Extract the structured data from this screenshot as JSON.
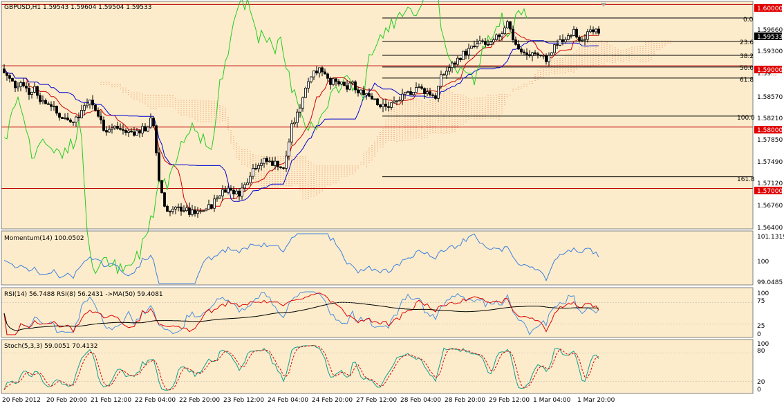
{
  "colors": {
    "background": "#fdeccb",
    "candle": "#000000",
    "tenkan": "#d00000",
    "kijun": "#0000d0",
    "chikou": "#22cc22",
    "cloud": "#f0b890",
    "level_line": "#c00000",
    "fib_line": "#000000",
    "momentum": "#3a7fe0",
    "rsi14": "#e00000",
    "rsi8": "#4a8fe0",
    "rsi_ma": "#000000",
    "stoch_main": "#0f9f8f",
    "stoch_signal": "#e00000",
    "current_price_bg": "#000000",
    "level_tag_bg": "#e00000"
  },
  "main": {
    "header": "GBPUSD,H1  1.59543 1.59604 1.59504 1.59533",
    "price_axis": [
      "1.59660",
      "1.59300",
      "1.58570",
      "1.58210",
      "1.57850",
      "1.57490",
      "1.57120",
      "1.56760",
      "1.56400"
    ],
    "current_price": "1.59533",
    "level_tags": [
      "1.60000",
      "1.59000",
      "1.58000",
      "1.57000"
    ],
    "fib_labels": [
      "0.0",
      "23.6",
      "38.2",
      "50.0",
      "61.8",
      "100.0",
      "161.8"
    ],
    "partial_price_label": "1.59..."
  },
  "momentum": {
    "header": "Momentum(14) 100.0502",
    "axis": [
      "101.1319",
      "100",
      "99.0485"
    ]
  },
  "rsi": {
    "header": "RSI(14) 56.7488  RSI(8) 56.2431  ->MA(50) 59.4081",
    "axis": [
      "100",
      "75",
      "25",
      "0"
    ]
  },
  "stoch": {
    "header": "Stoch(5,3,3) 59.0051 70.4132",
    "axis": [
      "100",
      "80",
      "20",
      "0"
    ]
  },
  "time_axis": [
    "20 Feb 2012",
    "20 Feb 20:00",
    "21 Feb 12:00",
    "22 Feb 04:00",
    "22 Feb 20:00",
    "23 Feb 12:00",
    "24 Feb 04:00",
    "24 Feb 20:00",
    "27 Feb 12:00",
    "28 Feb 04:00",
    "28 Feb 20:00",
    "29 Feb 12:00",
    "1 Mar 04:00",
    "1 Mar 20:00"
  ],
  "chart_data": {
    "type": "line",
    "title": "GBPUSD,H1",
    "ylim": [
      1.564,
      1.6005
    ],
    "price_anchors": [
      [
        0,
        1.5895
      ],
      [
        10,
        1.588
      ],
      [
        20,
        1.5868
      ],
      [
        30,
        1.5875
      ],
      [
        40,
        1.5855
      ],
      [
        48,
        1.5865
      ],
      [
        60,
        1.5838
      ],
      [
        70,
        1.584
      ],
      [
        80,
        1.5822
      ],
      [
        95,
        1.5812
      ],
      [
        110,
        1.5815
      ],
      [
        125,
        1.5845
      ],
      [
        135,
        1.583
      ],
      [
        150,
        1.5795
      ],
      [
        165,
        1.58
      ],
      [
        180,
        1.5792
      ],
      [
        195,
        1.5792
      ],
      [
        210,
        1.5798
      ],
      [
        218,
        1.5815
      ],
      [
        222,
        1.578
      ],
      [
        228,
        1.5715
      ],
      [
        236,
        1.5672
      ],
      [
        244,
        1.5662
      ],
      [
        252,
        1.5665
      ],
      [
        262,
        1.5668
      ],
      [
        272,
        1.566
      ],
      [
        282,
        1.5658
      ],
      [
        292,
        1.5665
      ],
      [
        302,
        1.567
      ],
      [
        312,
        1.5685
      ],
      [
        322,
        1.57
      ],
      [
        332,
        1.5698
      ],
      [
        342,
        1.569
      ],
      [
        352,
        1.5705
      ],
      [
        362,
        1.573
      ],
      [
        372,
        1.5742
      ],
      [
        382,
        1.5745
      ],
      [
        392,
        1.5742
      ],
      [
        400,
        1.574
      ],
      [
        408,
        1.573
      ],
      [
        414,
        1.5765
      ],
      [
        420,
        1.58
      ],
      [
        428,
        1.582
      ],
      [
        436,
        1.585
      ],
      [
        444,
        1.588
      ],
      [
        452,
        1.589
      ],
      [
        460,
        1.5895
      ],
      [
        468,
        1.589
      ],
      [
        476,
        1.5875
      ],
      [
        484,
        1.5872
      ],
      [
        492,
        1.5868
      ],
      [
        500,
        1.5863
      ],
      [
        508,
        1.587
      ],
      [
        516,
        1.5855
      ],
      [
        524,
        1.5858
      ],
      [
        532,
        1.5852
      ],
      [
        540,
        1.5848
      ],
      [
        548,
        1.5835
      ],
      [
        556,
        1.5832
      ],
      [
        564,
        1.5838
      ],
      [
        572,
        1.5842
      ],
      [
        580,
        1.5848
      ],
      [
        590,
        1.5856
      ],
      [
        600,
        1.5865
      ],
      [
        610,
        1.586
      ],
      [
        620,
        1.5855
      ],
      [
        628,
        1.585
      ],
      [
        636,
        1.588
      ],
      [
        646,
        1.5895
      ],
      [
        656,
        1.5905
      ],
      [
        666,
        1.5918
      ],
      [
        676,
        1.5925
      ],
      [
        686,
        1.5932
      ],
      [
        696,
        1.5938
      ],
      [
        706,
        1.593
      ],
      [
        716,
        1.5945
      ],
      [
        724,
        1.5955
      ],
      [
        732,
        1.5975
      ],
      [
        738,
        1.595
      ],
      [
        744,
        1.5935
      ],
      [
        752,
        1.592
      ],
      [
        760,
        1.5918
      ],
      [
        770,
        1.5922
      ],
      [
        780,
        1.5915
      ],
      [
        790,
        1.591
      ],
      [
        800,
        1.593
      ],
      [
        810,
        1.594
      ],
      [
        820,
        1.5945
      ],
      [
        828,
        1.596
      ],
      [
        836,
        1.5945
      ],
      [
        846,
        1.595
      ],
      [
        856,
        1.5955
      ],
      [
        864,
        1.5953
      ]
    ],
    "fib_levels": [
      [
        0.0,
        1.5978
      ],
      [
        23.6,
        1.594
      ],
      [
        38.2,
        1.5917
      ],
      [
        50.0,
        1.5898
      ],
      [
        61.8,
        1.588
      ],
      [
        100.0,
        1.5818
      ],
      [
        161.8,
        1.5719
      ]
    ],
    "horizontal_levels": [
      1.6,
      1.59,
      1.58,
      1.57
    ],
    "momentum_range": [
      99.0485,
      101.1319
    ],
    "momentum_last": 100.0502,
    "rsi14_last": 56.7488,
    "rsi8_last": 56.2431,
    "rsi_ma50_last": 59.4081,
    "stoch_main_last": 59.0051,
    "stoch_signal_last": 70.4132
  }
}
